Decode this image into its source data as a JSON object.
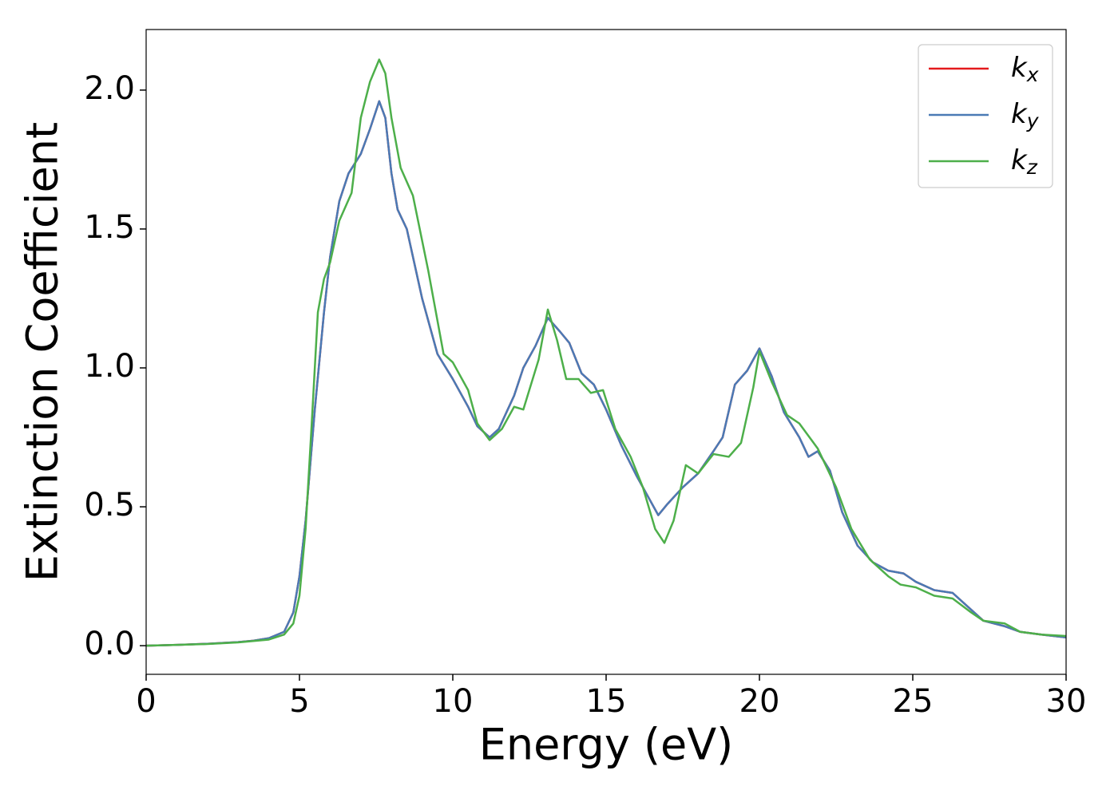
{
  "chart_data": {
    "type": "line",
    "xlabel": "Energy (eV)",
    "ylabel": "Extinction Coefficient",
    "xlim": [
      0,
      30
    ],
    "ylim": [
      -0.103,
      2.218
    ],
    "xticks": [
      0,
      5,
      10,
      15,
      20,
      25,
      30
    ],
    "yticks": [
      {
        "value": 0,
        "label": "0.0"
      },
      0.5,
      {
        "value": 1,
        "label": "1.0"
      },
      1.5,
      {
        "value": 2,
        "label": "2.0"
      }
    ],
    "legend": "upper right",
    "series": [
      {
        "name": "k_x",
        "color": "#e41a1c",
        "x": [
          0,
          1,
          2,
          3,
          3.5,
          4,
          4.5,
          4.8,
          5,
          5.2,
          5.5,
          5.8,
          6,
          6.3,
          6.6,
          7,
          7.3,
          7.6,
          7.8,
          8,
          8.2,
          8.5,
          9,
          9.5,
          10,
          10.5,
          10.8,
          11.2,
          11.5,
          12,
          12.3,
          12.7,
          13.1,
          13.5,
          13.8,
          14.2,
          14.6,
          15,
          15.5,
          16,
          16.3,
          16.7,
          17,
          17.5,
          18,
          18.5,
          18.8,
          19.2,
          19.6,
          20,
          20.4,
          20.8,
          21.3,
          21.6,
          21.9,
          22.3,
          22.7,
          23.2,
          23.7,
          24.2,
          24.7,
          25.1,
          25.7,
          26.3,
          26.8,
          27.3,
          28,
          28.5,
          29.2,
          30
        ],
        "values": [
          0,
          0.003,
          0.007,
          0.013,
          0.018,
          0.027,
          0.05,
          0.12,
          0.25,
          0.45,
          0.85,
          1.2,
          1.4,
          1.6,
          1.7,
          1.77,
          1.86,
          1.96,
          1.9,
          1.7,
          1.57,
          1.5,
          1.25,
          1.05,
          0.96,
          0.86,
          0.79,
          0.75,
          0.78,
          0.9,
          1.0,
          1.08,
          1.18,
          1.13,
          1.09,
          0.98,
          0.94,
          0.85,
          0.72,
          0.61,
          0.55,
          0.47,
          0.51,
          0.57,
          0.62,
          0.7,
          0.75,
          0.94,
          0.99,
          1.07,
          0.97,
          0.84,
          0.75,
          0.68,
          0.7,
          0.63,
          0.48,
          0.36,
          0.3,
          0.27,
          0.26,
          0.23,
          0.2,
          0.19,
          0.14,
          0.09,
          0.07,
          0.05,
          0.04,
          0.03
        ]
      },
      {
        "name": "k_y",
        "color": "#4a7ab5",
        "x": [
          0,
          1,
          2,
          3,
          3.5,
          4,
          4.5,
          4.8,
          5,
          5.2,
          5.5,
          5.8,
          6,
          6.3,
          6.6,
          7,
          7.3,
          7.6,
          7.8,
          8,
          8.2,
          8.5,
          9,
          9.5,
          10,
          10.5,
          10.8,
          11.2,
          11.5,
          12,
          12.3,
          12.7,
          13.1,
          13.5,
          13.8,
          14.2,
          14.6,
          15,
          15.5,
          16,
          16.3,
          16.7,
          17,
          17.5,
          18,
          18.5,
          18.8,
          19.2,
          19.6,
          20,
          20.4,
          20.8,
          21.3,
          21.6,
          21.9,
          22.3,
          22.7,
          23.2,
          23.7,
          24.2,
          24.7,
          25.1,
          25.7,
          26.3,
          26.8,
          27.3,
          28,
          28.5,
          29.2,
          30
        ],
        "values": [
          0,
          0.003,
          0.007,
          0.013,
          0.018,
          0.027,
          0.05,
          0.12,
          0.25,
          0.45,
          0.85,
          1.2,
          1.4,
          1.6,
          1.7,
          1.77,
          1.86,
          1.96,
          1.9,
          1.7,
          1.57,
          1.5,
          1.25,
          1.05,
          0.96,
          0.86,
          0.79,
          0.75,
          0.78,
          0.9,
          1.0,
          1.08,
          1.18,
          1.13,
          1.09,
          0.98,
          0.94,
          0.85,
          0.72,
          0.61,
          0.55,
          0.47,
          0.51,
          0.57,
          0.62,
          0.7,
          0.75,
          0.94,
          0.99,
          1.07,
          0.97,
          0.84,
          0.75,
          0.68,
          0.7,
          0.63,
          0.48,
          0.36,
          0.3,
          0.27,
          0.26,
          0.23,
          0.2,
          0.19,
          0.14,
          0.09,
          0.07,
          0.05,
          0.04,
          0.03
        ]
      },
      {
        "name": "k_z",
        "color": "#4daf4a",
        "x": [
          0,
          1,
          2,
          3,
          4,
          4.5,
          4.8,
          5,
          5.2,
          5.4,
          5.6,
          5.8,
          6,
          6.3,
          6.7,
          7,
          7.3,
          7.6,
          7.8,
          8,
          8.3,
          8.7,
          9.2,
          9.7,
          10,
          10.5,
          10.8,
          11.2,
          11.6,
          12,
          12.3,
          12.8,
          13.1,
          13.4,
          13.7,
          14.1,
          14.5,
          14.9,
          15.3,
          15.8,
          16.2,
          16.6,
          16.9,
          17.2,
          17.6,
          18,
          18.5,
          19,
          19.4,
          19.8,
          20,
          20.4,
          20.9,
          21.3,
          21.9,
          22.5,
          23,
          23.6,
          24.2,
          24.6,
          25.1,
          25.7,
          26.3,
          26.9,
          27.3,
          28,
          28.5,
          29.2,
          30
        ],
        "values": [
          0,
          0.003,
          0.006,
          0.012,
          0.022,
          0.04,
          0.08,
          0.18,
          0.42,
          0.8,
          1.2,
          1.32,
          1.38,
          1.53,
          1.63,
          1.9,
          2.03,
          2.11,
          2.06,
          1.9,
          1.72,
          1.62,
          1.35,
          1.05,
          1.02,
          0.92,
          0.8,
          0.74,
          0.78,
          0.86,
          0.85,
          1.03,
          1.21,
          1.1,
          0.96,
          0.96,
          0.91,
          0.92,
          0.78,
          0.68,
          0.57,
          0.42,
          0.37,
          0.45,
          0.65,
          0.62,
          0.69,
          0.68,
          0.73,
          0.93,
          1.06,
          0.95,
          0.83,
          0.8,
          0.71,
          0.57,
          0.42,
          0.31,
          0.25,
          0.22,
          0.21,
          0.18,
          0.17,
          0.12,
          0.09,
          0.08,
          0.05,
          0.04,
          0.035
        ]
      }
    ]
  }
}
